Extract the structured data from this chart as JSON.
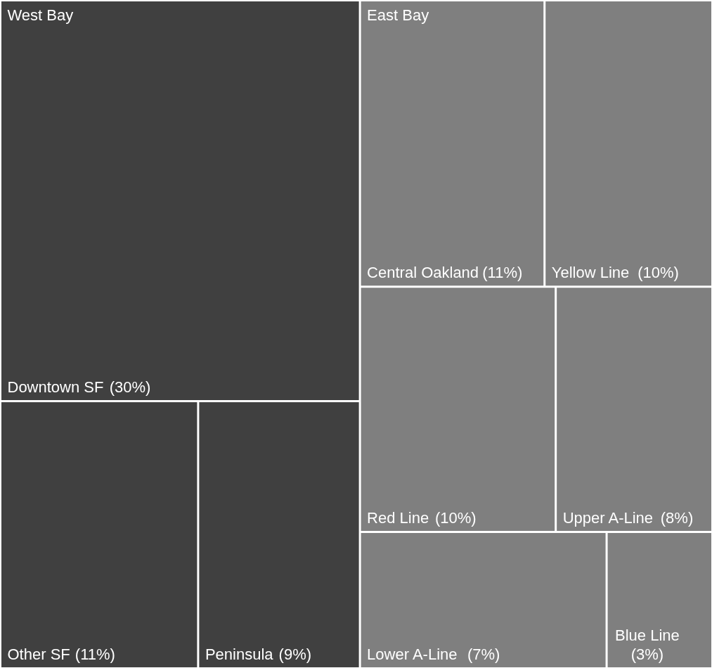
{
  "chart_data": {
    "type": "other",
    "categories": [
      "Downtown SF",
      "Other SF",
      "Peninsula",
      "Central Oakland",
      "Yellow Line",
      "Red Line",
      "Upper A-Line",
      "Lower A-Line",
      "Blue Line"
    ],
    "values": [
      30,
      11,
      9,
      11,
      10,
      10,
      8,
      7,
      3
    ],
    "value_labels": [
      "(30%)",
      "(11%)",
      "(9%)",
      "(11%)",
      "(10%)",
      "(10%)",
      "(8%)",
      "(7%)",
      "(3%)"
    ],
    "colors": [
      "#404040",
      "#404040",
      "#404040",
      "#7f7f7f",
      "#7f7f7f",
      "#7f7f7f",
      "#7f7f7f",
      "#7f7f7f",
      "#7f7f7f"
    ],
    "annotations": [
      "West Bay",
      "East Bay"
    ]
  }
}
